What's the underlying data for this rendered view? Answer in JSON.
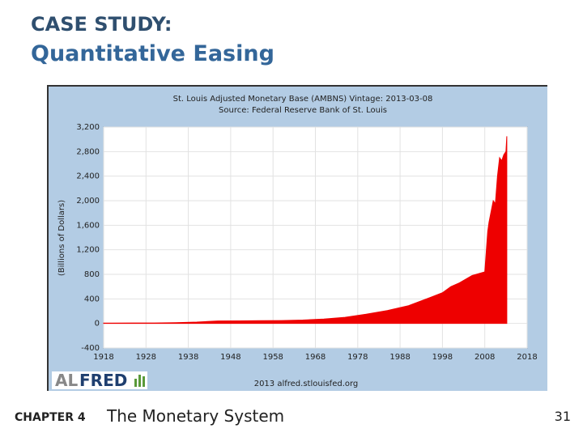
{
  "slide": {
    "heading": "CASE STUDY:",
    "title": "Quantitative Easing",
    "chapter": "CHAPTER 4",
    "section": "The Monetary System",
    "page": "31"
  },
  "chart_data": {
    "type": "area",
    "title": "St. Louis Adjusted Monetary Base (AMBNS) Vintage: 2013-03-08",
    "subtitle": "Source: Federal Reserve Bank of St. Louis",
    "y_label": "(Billions of Dollars)",
    "credit": "2013 alfred.stlouisfed.org",
    "logo": [
      "AL",
      "FRED"
    ],
    "color": "#ee0000",
    "grid": true,
    "x": [
      1918,
      1920,
      1925,
      1930,
      1935,
      1940,
      1945,
      1950,
      1955,
      1960,
      1965,
      1970,
      1975,
      1980,
      1985,
      1990,
      1995,
      1998,
      2000,
      2002,
      2005,
      2008,
      2008.7,
      2009,
      2010,
      2010.5,
      2011,
      2011.5,
      2012,
      2012.5,
      2013,
      2013.2
    ],
    "values": [
      5,
      6,
      7,
      7,
      12,
      22,
      40,
      42,
      45,
      47,
      55,
      72,
      100,
      150,
      210,
      290,
      420,
      500,
      600,
      660,
      780,
      840,
      1500,
      1650,
      2000,
      1950,
      2400,
      2700,
      2650,
      2750,
      2800,
      3050
    ],
    "xlim": [
      1918,
      2018
    ],
    "xticks": [
      1918,
      1928,
      1938,
      1948,
      1958,
      1968,
      1978,
      1988,
      1998,
      2008,
      2018
    ],
    "ylim": [
      -400,
      3200
    ],
    "yticks": [
      -400,
      0,
      400,
      800,
      {
        "value": 1200,
        "label": "1,200"
      },
      {
        "value": 1600,
        "label": "1,600"
      },
      {
        "value": 2000,
        "label": "2,000"
      },
      {
        "value": 2400,
        "label": "2,400"
      },
      {
        "value": 2800,
        "label": "2,800"
      },
      {
        "value": 3200,
        "label": "3,200"
      }
    ]
  }
}
